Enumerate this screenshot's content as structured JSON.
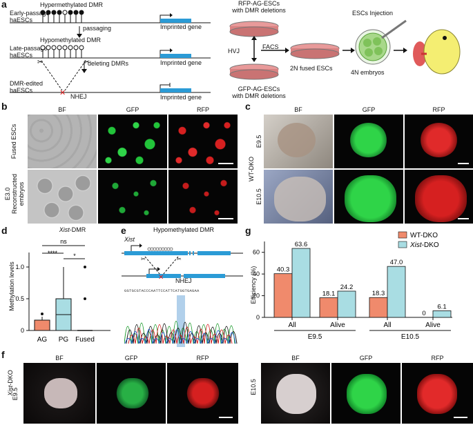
{
  "panels": {
    "a": "a",
    "b": "b",
    "c": "c",
    "d": "d",
    "e": "e",
    "f": "f",
    "g": "g"
  },
  "a": {
    "early": "Early-passage\nhaESCs",
    "late": "Late-passage\nhaESCs",
    "edited": "DMR-edited\nhaESCs",
    "hyper": "Hypermethylated DMR",
    "hypo": "Hypomethylated DMR",
    "passaging": "passaging",
    "deleting": "deleting DMRs",
    "nhej": "NHEJ",
    "imprinted": "Imprinted gene",
    "rfp_cells": "RFP-AG-ESCs\nwith DMR deletions",
    "gfp_cells": "GFP-AG-ESCs\nwith DMR deletions",
    "hvj": "HVJ",
    "facs": "FACS",
    "fused": "2N fused ESCs",
    "injection": "ESCs Injection",
    "embryos": "4N embryos"
  },
  "b": {
    "cols": [
      "BF",
      "GFP",
      "RFP"
    ],
    "rows": [
      "Fused ESCs",
      "E3.0\nReconstructed\nembryos"
    ]
  },
  "c": {
    "cols": [
      "BF",
      "GFP",
      "RFP"
    ],
    "rows": [
      "E9.5",
      "E10.5"
    ],
    "group": "WT-DKO"
  },
  "d": {
    "title": "Xist-DMR",
    "title_italic": "Xist",
    "title_rest": "-DMR",
    "ylabel": "Methylation levels",
    "categories": [
      "AG",
      "PG",
      "Fused"
    ],
    "yticks": [
      "0",
      "0.5",
      "1.0"
    ],
    "sig": [
      "ns",
      "****",
      "*"
    ],
    "colors": {
      "AG": "#f08a6c",
      "PG": "#a9dde3",
      "Fused": "#ffffff"
    }
  },
  "e": {
    "title": "Hypomethylated DMR",
    "gene": "Xist",
    "nhej": "NHEJ",
    "seq": "GGTGCGTACCCAATTCCATTCATGGTGAGAA"
  },
  "f": {
    "group": "Xist-DKO",
    "group_italic": "Xist",
    "group_rest": "-DKO",
    "stage_left": "E9.5",
    "stage_right": "E10.5",
    "cols": [
      "BF",
      "GFP",
      "RFP"
    ]
  },
  "chart_data": {
    "type": "bar",
    "ylabel": "Efficiency (%)",
    "ylim": [
      0,
      70
    ],
    "yticks": [
      0,
      20,
      40,
      60
    ],
    "categories": [
      "All",
      "Alive",
      "All",
      "Alive"
    ],
    "groups": [
      "E9.5",
      "E10.5"
    ],
    "series": [
      {
        "name": "WT-DKO",
        "values": [
          40.3,
          18.1,
          18.3,
          0
        ],
        "color": "#f08a6c"
      },
      {
        "name": "Xist-DKO",
        "values": [
          63.6,
          24.2,
          47.0,
          6.1
        ],
        "color": "#a9dde3"
      }
    ],
    "data_labels": {
      "WT-DKO": [
        "40.3",
        "18.1",
        "18.3",
        "0"
      ],
      "Xist-DKO": [
        "63.6",
        "24.2",
        "47.0",
        "6.1"
      ]
    },
    "legend_position": "top-right",
    "grid": false
  }
}
